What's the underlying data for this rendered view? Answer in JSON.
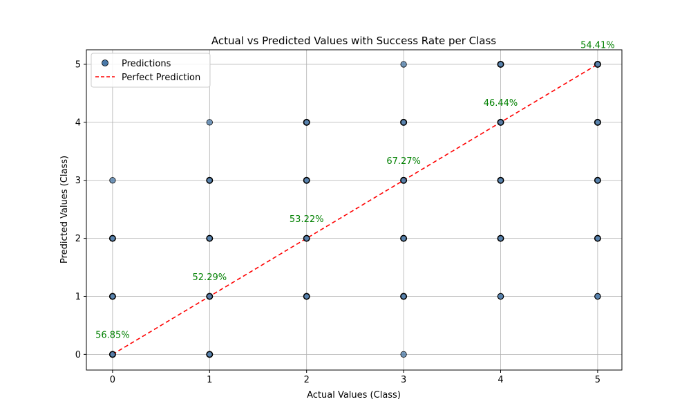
{
  "chart_data": {
    "type": "scatter",
    "title": "Actual vs Predicted Values with Success Rate per Class",
    "xlabel": "Actual Values (Class)",
    "ylabel": "Predicted Values (Class)",
    "xlim": [
      -0.27,
      5.25
    ],
    "ylim": [
      -0.27,
      5.25
    ],
    "xticks": [
      0,
      1,
      2,
      3,
      4,
      5
    ],
    "yticks": [
      0,
      1,
      2,
      3,
      4,
      5
    ],
    "grid": true,
    "legend_position": "top-left",
    "series": [
      {
        "name": "Predictions",
        "kind": "scatter",
        "color": "#4a79a8",
        "edge_color": "#000000",
        "points": [
          {
            "x": 0,
            "y": 0,
            "density": "high"
          },
          {
            "x": 0,
            "y": 1,
            "density": "high"
          },
          {
            "x": 0,
            "y": 2,
            "density": "high"
          },
          {
            "x": 0,
            "y": 3,
            "density": "low"
          },
          {
            "x": 1,
            "y": 0,
            "density": "high"
          },
          {
            "x": 1,
            "y": 1,
            "density": "high"
          },
          {
            "x": 1,
            "y": 2,
            "density": "high"
          },
          {
            "x": 1,
            "y": 3,
            "density": "high"
          },
          {
            "x": 1,
            "y": 4,
            "density": "low"
          },
          {
            "x": 2,
            "y": 1,
            "density": "high"
          },
          {
            "x": 2,
            "y": 2,
            "density": "high"
          },
          {
            "x": 2,
            "y": 3,
            "density": "high"
          },
          {
            "x": 2,
            "y": 4,
            "density": "high"
          },
          {
            "x": 3,
            "y": 0,
            "density": "low"
          },
          {
            "x": 3,
            "y": 1,
            "density": "high"
          },
          {
            "x": 3,
            "y": 2,
            "density": "high"
          },
          {
            "x": 3,
            "y": 3,
            "density": "high"
          },
          {
            "x": 3,
            "y": 4,
            "density": "high"
          },
          {
            "x": 3,
            "y": 5,
            "density": "low"
          },
          {
            "x": 4,
            "y": 1,
            "density": "medium"
          },
          {
            "x": 4,
            "y": 2,
            "density": "high"
          },
          {
            "x": 4,
            "y": 3,
            "density": "high"
          },
          {
            "x": 4,
            "y": 4,
            "density": "high"
          },
          {
            "x": 4,
            "y": 5,
            "density": "high"
          },
          {
            "x": 5,
            "y": 1,
            "density": "medium"
          },
          {
            "x": 5,
            "y": 2,
            "density": "high"
          },
          {
            "x": 5,
            "y": 3,
            "density": "high"
          },
          {
            "x": 5,
            "y": 4,
            "density": "high"
          },
          {
            "x": 5,
            "y": 5,
            "density": "high"
          }
        ]
      },
      {
        "name": "Perfect Prediction",
        "kind": "line",
        "style": "dashed",
        "color": "#ff0000",
        "x": [
          0,
          5
        ],
        "y": [
          0,
          5
        ]
      }
    ],
    "annotations": [
      {
        "class": 0,
        "text": "56.85%"
      },
      {
        "class": 1,
        "text": "52.29%"
      },
      {
        "class": 2,
        "text": "53.22%"
      },
      {
        "class": 3,
        "text": "67.27%"
      },
      {
        "class": 4,
        "text": "46.44%"
      },
      {
        "class": 5,
        "text": "54.41%"
      }
    ],
    "annotation_color": "#008000"
  }
}
